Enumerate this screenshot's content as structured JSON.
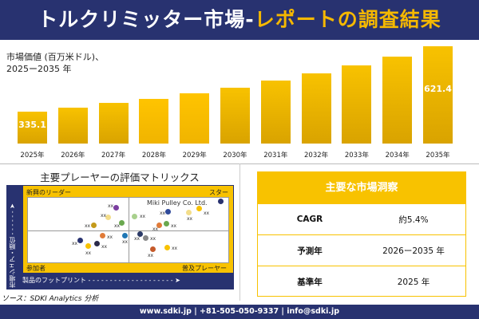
{
  "title": {
    "part1": "トルクリミッター市場",
    "sep": "-",
    "part2": "レポートの調査結果"
  },
  "chart_data": {
    "type": "bar",
    "title": "市場価値 (百万米ドル)、",
    "subtitle": "2025ー2035 年",
    "categories": [
      "2025年",
      "2026年",
      "2027年",
      "2028年",
      "2029年",
      "2030年",
      "2031年",
      "2032年",
      "2033年",
      "2034年",
      "2035年"
    ],
    "values": [
      335.1,
      353.5,
      372,
      390,
      416,
      441,
      471,
      504,
      537,
      577,
      621.4
    ],
    "data_labels": {
      "0": "335.1",
      "10": "621.4"
    },
    "bar_color": "#f8c200"
  },
  "matrix": {
    "title": "主要プレーヤーの評価マトリックス",
    "quadrants": {
      "top_left": "新興のリーダー",
      "top_right": "スター",
      "bottom_left": "参加者",
      "bottom_right": "普及プレーヤー"
    },
    "y_axis": "市場シェア・順位",
    "x_axis": "製品のフットプリント",
    "highlight": "Miki Pulley Co. Ltd.",
    "player_label": "xx",
    "colors": [
      "#7b3fa0",
      "#f3dd8a",
      "#c49a1a",
      "#6aa84f",
      "#e07b39",
      "#1f77b4",
      "#283270",
      "#f8c200",
      "#2b2b4a",
      "#283270",
      "#f8c200",
      "#f3dd8a",
      "#2f4a9a",
      "#a8d08d",
      "#e07b39",
      "#6aa84f",
      "#2b3a67",
      "#888888",
      "#c55a2a",
      "#f8c200"
    ]
  },
  "insights": {
    "title": "主要な市場洞察",
    "rows": [
      {
        "key": "CAGR",
        "value": "約5.4%"
      },
      {
        "key": "予測年",
        "value": "2026ー2035 年"
      },
      {
        "key": "基準年",
        "value": "2025 年"
      }
    ]
  },
  "source": "ソース：SDKI Analytics 分析",
  "footer": "www.sdki.jp | +81-505-050-9337 | info@sdki.jp"
}
